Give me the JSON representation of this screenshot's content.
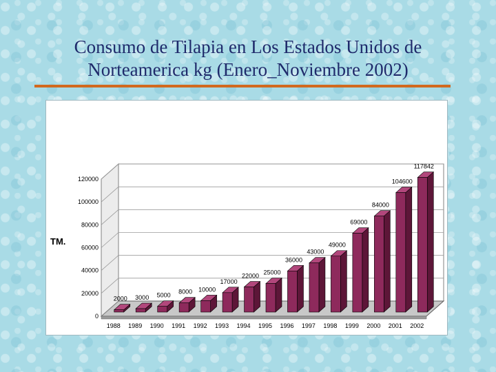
{
  "slide": {
    "title_line1": "Consumo de Tilapia en Los Estados Unidos de",
    "title_line2": "Norteamerica kg (Enero_Noviembre 2002)"
  },
  "colors": {
    "bar_front": "#8e2a5c",
    "bar_top": "#b2477c",
    "bar_side": "#5d1638",
    "accent_rule": "#d2691e",
    "title": "#1f2a6b"
  },
  "chart_data": {
    "type": "bar",
    "title": "",
    "xlabel": "",
    "ylabel": "TM.",
    "categories": [
      "1988",
      "1989",
      "1990",
      "1991",
      "1992",
      "1993",
      "1994",
      "1995",
      "1996",
      "1997",
      "1998",
      "1999",
      "2000",
      "2001",
      "2002"
    ],
    "values": [
      2000,
      3000,
      5000,
      8000,
      10000,
      17000,
      22000,
      25000,
      36000,
      43000,
      49000,
      69000,
      84000,
      104600,
      117842
    ],
    "data_labels": [
      "2000",
      "3000",
      "5000",
      "8000",
      "10000",
      "17000",
      "22000",
      "25000",
      "36000",
      "43000",
      "49000",
      "69000",
      "84000",
      "104600",
      "117842"
    ],
    "ylim": [
      0,
      120000
    ],
    "yticks": [
      0,
      20000,
      40000,
      60000,
      80000,
      100000,
      120000
    ],
    "ytick_labels": [
      "0",
      "20000",
      "40000",
      "60000",
      "80000",
      "100000",
      "120000"
    ],
    "grid": true,
    "three_d": true,
    "legend": "none"
  }
}
